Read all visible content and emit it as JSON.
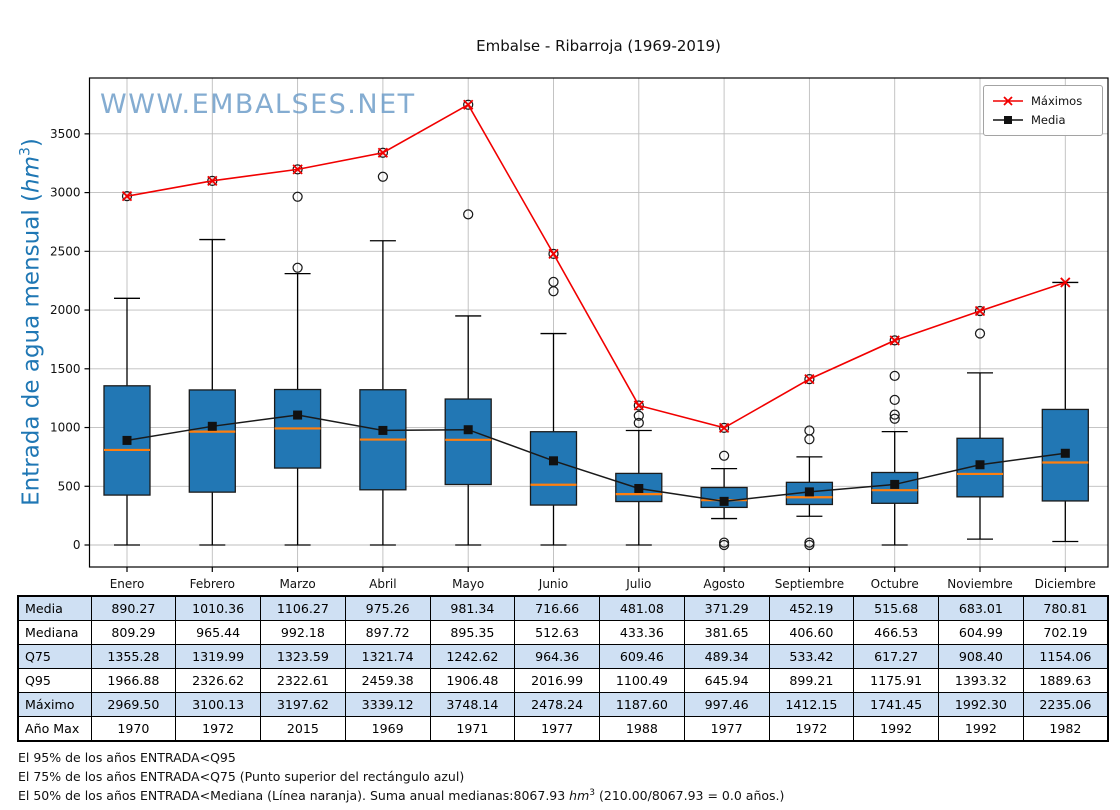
{
  "title": "Embalse - Ribarroja (1969-2019)",
  "watermark": {
    "text": "WWW.EMBALSES.NET",
    "color": "#6f9ec9"
  },
  "ylabel": {
    "prefix": "Entrada de agua mensual (",
    "unit_italic": "hm",
    "unit_sup": "3",
    "suffix": ")",
    "color": "#1f77b4"
  },
  "legend": {
    "items": [
      {
        "label": "Máximos",
        "marker": "x-marker",
        "color": "#f10000"
      },
      {
        "label": "Media",
        "marker": "square-marker",
        "color": "#111111"
      }
    ]
  },
  "chart_data": {
    "type": "box+line",
    "categories": [
      "Enero",
      "Febrero",
      "Marzo",
      "Abril",
      "Mayo",
      "Junio",
      "Julio",
      "Agosto",
      "Septiembre",
      "Octubre",
      "Noviembre",
      "Diciembre"
    ],
    "yticks": [
      0,
      500,
      1000,
      1500,
      2000,
      2500,
      3000,
      3500
    ],
    "ylim": [
      -190,
      3980
    ],
    "grid": true,
    "legend_position": "upper right",
    "series": [
      {
        "name": "Máximos",
        "marker": "x",
        "color": "#f10000",
        "values": [
          2969.5,
          3100.13,
          3197.62,
          3339.12,
          3748.14,
          2478.24,
          1187.6,
          997.46,
          1412.15,
          1741.45,
          1992.3,
          2235.06
        ]
      },
      {
        "name": "Media",
        "marker": "square",
        "color": "#111111",
        "values": [
          890.27,
          1010.36,
          1106.27,
          975.26,
          981.34,
          716.66,
          481.08,
          371.29,
          452.19,
          515.68,
          683.01,
          780.81
        ]
      }
    ],
    "boxes": {
      "q25": [
        425,
        450,
        655,
        470,
        515,
        340,
        370,
        320,
        345,
        355,
        410,
        375
      ],
      "median": [
        809.29,
        965.44,
        992.18,
        897.72,
        895.35,
        512.63,
        433.36,
        381.65,
        406.6,
        466.53,
        604.99,
        702.19
      ],
      "q75": [
        1355.28,
        1319.99,
        1323.59,
        1321.74,
        1242.62,
        964.36,
        609.46,
        489.34,
        533.42,
        617.27,
        908.4,
        1154.06
      ],
      "whisker_low": [
        0,
        0,
        0,
        0,
        0,
        0,
        0,
        225,
        245,
        0,
        50,
        30
      ],
      "whisker_high": [
        2100,
        2600,
        2310,
        2590,
        1950,
        1800,
        975,
        650,
        750,
        965,
        1465,
        2235.06
      ],
      "outliers": [
        [
          2969.5
        ],
        [
          3100.13
        ],
        [
          2360,
          2965,
          3197.62
        ],
        [
          3135,
          3339.12
        ],
        [
          2815,
          3748.14
        ],
        [
          2160,
          2240,
          2478.24
        ],
        [
          1040,
          1100,
          1187.6
        ],
        [
          0,
          20,
          760,
          997.46
        ],
        [
          0,
          20,
          900,
          975,
          1412.15
        ],
        [
          1075,
          1110,
          1235,
          1440,
          1741.45
        ],
        [
          1800,
          1992.3
        ],
        []
      ],
      "box_fill": "#2277b4",
      "median_color": "#ff7f0e"
    }
  },
  "table": {
    "rows": [
      {
        "label": "Media",
        "values": [
          "890.27",
          "1010.36",
          "1106.27",
          "975.26",
          "981.34",
          "716.66",
          "481.08",
          "371.29",
          "452.19",
          "515.68",
          "683.01",
          "780.81"
        ]
      },
      {
        "label": "Mediana",
        "values": [
          "809.29",
          "965.44",
          "992.18",
          "897.72",
          "895.35",
          "512.63",
          "433.36",
          "381.65",
          "406.60",
          "466.53",
          "604.99",
          "702.19"
        ]
      },
      {
        "label": "Q75",
        "values": [
          "1355.28",
          "1319.99",
          "1323.59",
          "1321.74",
          "1242.62",
          "964.36",
          "609.46",
          "489.34",
          "533.42",
          "617.27",
          "908.40",
          "1154.06"
        ]
      },
      {
        "label": "Q95",
        "values": [
          "1966.88",
          "2326.62",
          "2322.61",
          "2459.38",
          "1906.48",
          "2016.99",
          "1100.49",
          "645.94",
          "899.21",
          "1175.91",
          "1393.32",
          "1889.63"
        ]
      },
      {
        "label": "Máximo",
        "values": [
          "2969.50",
          "3100.13",
          "3197.62",
          "3339.12",
          "3748.14",
          "2478.24",
          "1187.60",
          "997.46",
          "1412.15",
          "1741.45",
          "1992.30",
          "2235.06"
        ]
      },
      {
        "label": "Año Max",
        "values": [
          "1970",
          "1972",
          "2015",
          "1969",
          "1971",
          "1977",
          "1988",
          "1977",
          "1972",
          "1992",
          "1992",
          "1982"
        ]
      }
    ],
    "alt_row_color": "#cfe0f3"
  },
  "footnotes": {
    "line1": "El 95% de los años ENTRADA<Q95",
    "line2": "El 75% de los años ENTRADA<Q75 (Punto superior del rectángulo azul)",
    "line3_prefix": "El 50% de los años ENTRADA<Mediana (Línea naranja). Suma anual medianas:8067.93 ",
    "line3_unit_italic": "hm",
    "line3_unit_sup": "3",
    "line3_suffix": " (210.00/8067.93 = 0.0 años.)"
  },
  "colors": {
    "grid": "#bdbdbd",
    "spine": "#000000",
    "max_line": "#f10000",
    "mean_line": "#1a1a1a",
    "flier_edge": "#1a1a1a"
  }
}
